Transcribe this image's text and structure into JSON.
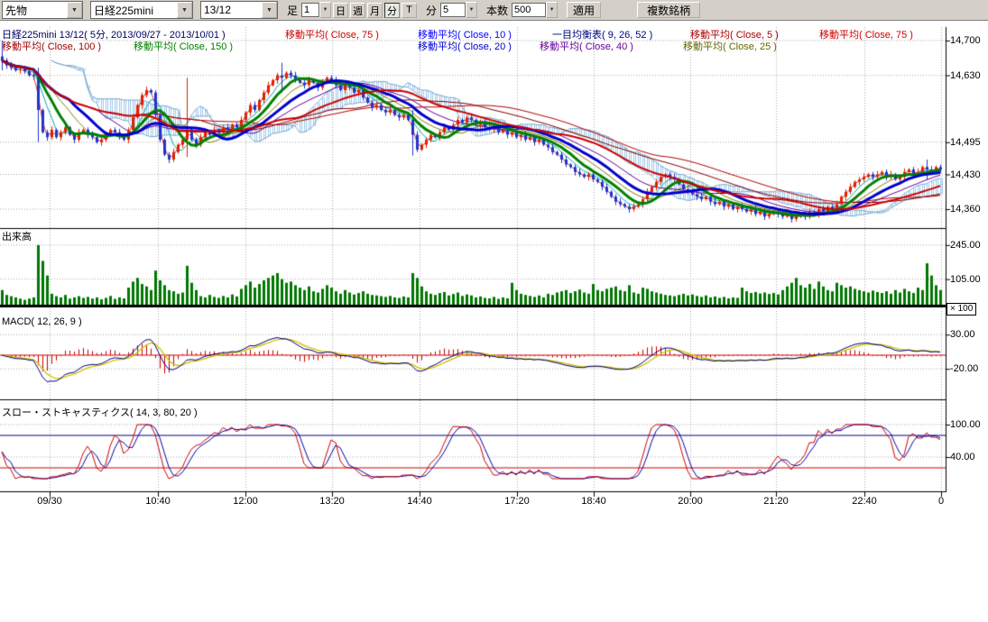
{
  "toolbar": {
    "instrument": "先物",
    "symbol": "日経225mini",
    "contract": "13/12",
    "ashi_label": "足",
    "ashi_value": "1",
    "periods": [
      "日",
      "週",
      "月",
      "分",
      "T"
    ],
    "min_label": "分",
    "min_value": "5",
    "bars_label": "本数",
    "bars_value": "500",
    "apply": "適用",
    "multi": "複数銘柄"
  },
  "legend": {
    "row1": [
      "日経225mini 13/12( 5分, 2013/09/27 - 2013/10/01 )",
      "移動平均( Close, 75 )",
      "移動平均( Close, 10 )",
      "一目均衡表( 9, 26, 52 )",
      "移動平均( Close, 5 )",
      "移動平均( Close, 75 )"
    ],
    "row2": [
      "移動平均( Close, 100 )",
      "移動平均( Close, 150 )",
      "移動平均( Close, 20 )",
      "移動平均( Close, 40 )",
      "移動平均( Close, 25 )"
    ]
  },
  "panels": {
    "volume_label": "出来高",
    "volume_multiplier": "× 100",
    "macd_label": "MACD( 12, 26, 9 )",
    "stoch_label": "スロー・ストキャスティクス( 14, 3, 80, 20 )"
  },
  "axes": {
    "price": [
      "14,700",
      "14,630",
      "14,495",
      "14,430",
      "14,360"
    ],
    "volume": [
      "245.00",
      "105.00"
    ],
    "macd": [
      "30.00",
      "-20.00"
    ],
    "stoch": [
      "100.00",
      "40.00"
    ],
    "time": [
      "09/30",
      "10:40",
      "12:00",
      "13:20",
      "14:40",
      "17:20",
      "18:40",
      "20:00",
      "21:20",
      "22:40",
      "0"
    ]
  },
  "colors": {
    "up_candle": "#dd2200",
    "down_candle": "#2233cc",
    "volume_bar": "#007700",
    "macd_line": "#000080",
    "macd_signal": "#d4c400",
    "macd_hist": "#cc0000",
    "stoch_k": "#cc0000",
    "stoch_d": "#0000aa",
    "cloud": "#9fc8e8",
    "grid": "#999999"
  },
  "chart_data": {
    "type": "candlestick",
    "title": "日経225mini 13/12( 5分, 2013/09/27 - 2013/10/01 )",
    "price_ticks": [
      14700,
      14630,
      14495,
      14430,
      14360
    ],
    "volume_ticks": [
      245,
      105
    ],
    "macd_ticks": [
      30,
      -20
    ],
    "stoch_ticks": [
      100,
      40
    ],
    "stoch_hlines": [
      80,
      20
    ],
    "ma_periods_labeled": [
      5,
      10,
      20,
      25,
      40,
      75,
      100,
      150
    ],
    "ichimoku_params": [
      9,
      26,
      52
    ],
    "macd_params": [
      12,
      26,
      9
    ],
    "stoch_params": [
      14,
      3,
      80,
      20
    ],
    "time_x": [
      55,
      175,
      272,
      368,
      465,
      573,
      658,
      765,
      860,
      958,
      1043
    ],
    "close": [
      14660,
      14650,
      14645,
      14640,
      14642,
      14638,
      14630,
      14628,
      14560,
      14515,
      14505,
      14520,
      14505,
      14515,
      14525,
      14510,
      14500,
      14515,
      14520,
      14510,
      14505,
      14495,
      14500,
      14510,
      14520,
      14515,
      14505,
      14500,
      14520,
      14545,
      14570,
      14590,
      14600,
      14595,
      14550,
      14500,
      14470,
      14460,
      14475,
      14490,
      14500,
      14520,
      14500,
      14490,
      14505,
      14515,
      14510,
      14520,
      14515,
      14525,
      14520,
      14530,
      14525,
      14540,
      14555,
      14570,
      14560,
      14580,
      14595,
      14610,
      14620,
      14630,
      14625,
      14635,
      14630,
      14620,
      14615,
      14610,
      14620,
      14615,
      14605,
      14615,
      14625,
      14620,
      14610,
      14600,
      14610,
      14605,
      14595,
      14600,
      14585,
      14575,
      14565,
      14570,
      14560,
      14555,
      14560,
      14550,
      14545,
      14550,
      14540,
      14510,
      14480,
      14490,
      14500,
      14510,
      14505,
      14515,
      14525,
      14520,
      14530,
      14540,
      14535,
      14545,
      14540,
      14530,
      14535,
      14525,
      14520,
      14525,
      14515,
      14520,
      14510,
      14515,
      14505,
      14510,
      14500,
      14505,
      14495,
      14500,
      14490,
      14485,
      14475,
      14470,
      14460,
      14450,
      14445,
      14435,
      14430,
      14425,
      14430,
      14420,
      14415,
      14405,
      14395,
      14385,
      14375,
      14370,
      14365,
      14360,
      14365,
      14370,
      14380,
      14395,
      14405,
      14415,
      14425,
      14430,
      14425,
      14420,
      14410,
      14400,
      14395,
      14390,
      14385,
      14380,
      14385,
      14375,
      14370,
      14375,
      14365,
      14370,
      14360,
      14365,
      14360,
      14355,
      14360,
      14350,
      14355,
      14345,
      14350,
      14355,
      14350,
      14345,
      14350,
      14340,
      14345,
      14350,
      14345,
      14355,
      14350,
      14360,
      14355,
      14365,
      14360,
      14370,
      14385,
      14395,
      14405,
      14415,
      14420,
      14425,
      14430,
      14425,
      14430,
      14435,
      14425,
      14430,
      14420,
      14425,
      14435,
      14440,
      14430,
      14435,
      14445,
      14440,
      14435,
      14445,
      14440
    ],
    "wick_overrides": {
      "0": [
        14700,
        14640
      ],
      "8": [
        14645,
        14495
      ],
      "41": [
        14625,
        14465
      ],
      "62": [
        14655,
        14595
      ],
      "91": [
        14560,
        14468
      ],
      "205": [
        14460,
        14418
      ]
    },
    "volume": [
      60,
      40,
      35,
      30,
      25,
      20,
      25,
      30,
      245,
      180,
      120,
      45,
      35,
      30,
      40,
      25,
      30,
      35,
      28,
      32,
      25,
      30,
      22,
      28,
      36,
      24,
      30,
      26,
      70,
      95,
      110,
      85,
      75,
      60,
      140,
      100,
      80,
      60,
      55,
      45,
      50,
      160,
      90,
      60,
      35,
      30,
      40,
      32,
      28,
      36,
      30,
      42,
      34,
      65,
      80,
      95,
      70,
      85,
      100,
      110,
      120,
      130,
      105,
      90,
      95,
      80,
      70,
      60,
      75,
      55,
      50,
      65,
      80,
      70,
      55,
      45,
      60,
      50,
      42,
      48,
      55,
      45,
      40,
      38,
      35,
      32,
      36,
      30,
      28,
      34,
      30,
      130,
      110,
      75,
      55,
      45,
      40,
      48,
      52,
      38,
      44,
      50,
      36,
      42,
      38,
      30,
      34,
      28,
      26,
      32,
      24,
      30,
      26,
      90,
      60,
      45,
      40,
      36,
      32,
      38,
      30,
      45,
      40,
      50,
      55,
      60,
      48,
      55,
      62,
      50,
      45,
      85,
      60,
      55,
      65,
      70,
      75,
      60,
      55,
      80,
      50,
      45,
      70,
      65,
      55,
      50,
      45,
      40,
      38,
      35,
      40,
      45,
      38,
      42,
      36,
      32,
      38,
      30,
      34,
      28,
      32,
      26,
      30,
      28,
      70,
      55,
      48,
      52,
      46,
      50,
      44,
      48,
      42,
      60,
      75,
      90,
      110,
      80,
      70,
      85,
      65,
      95,
      75,
      60,
      55,
      90,
      80,
      70,
      75,
      65,
      60,
      55,
      50,
      58,
      52,
      48,
      55,
      45,
      60,
      50,
      65,
      55,
      48,
      70,
      60,
      170,
      120,
      80,
      60
    ]
  }
}
